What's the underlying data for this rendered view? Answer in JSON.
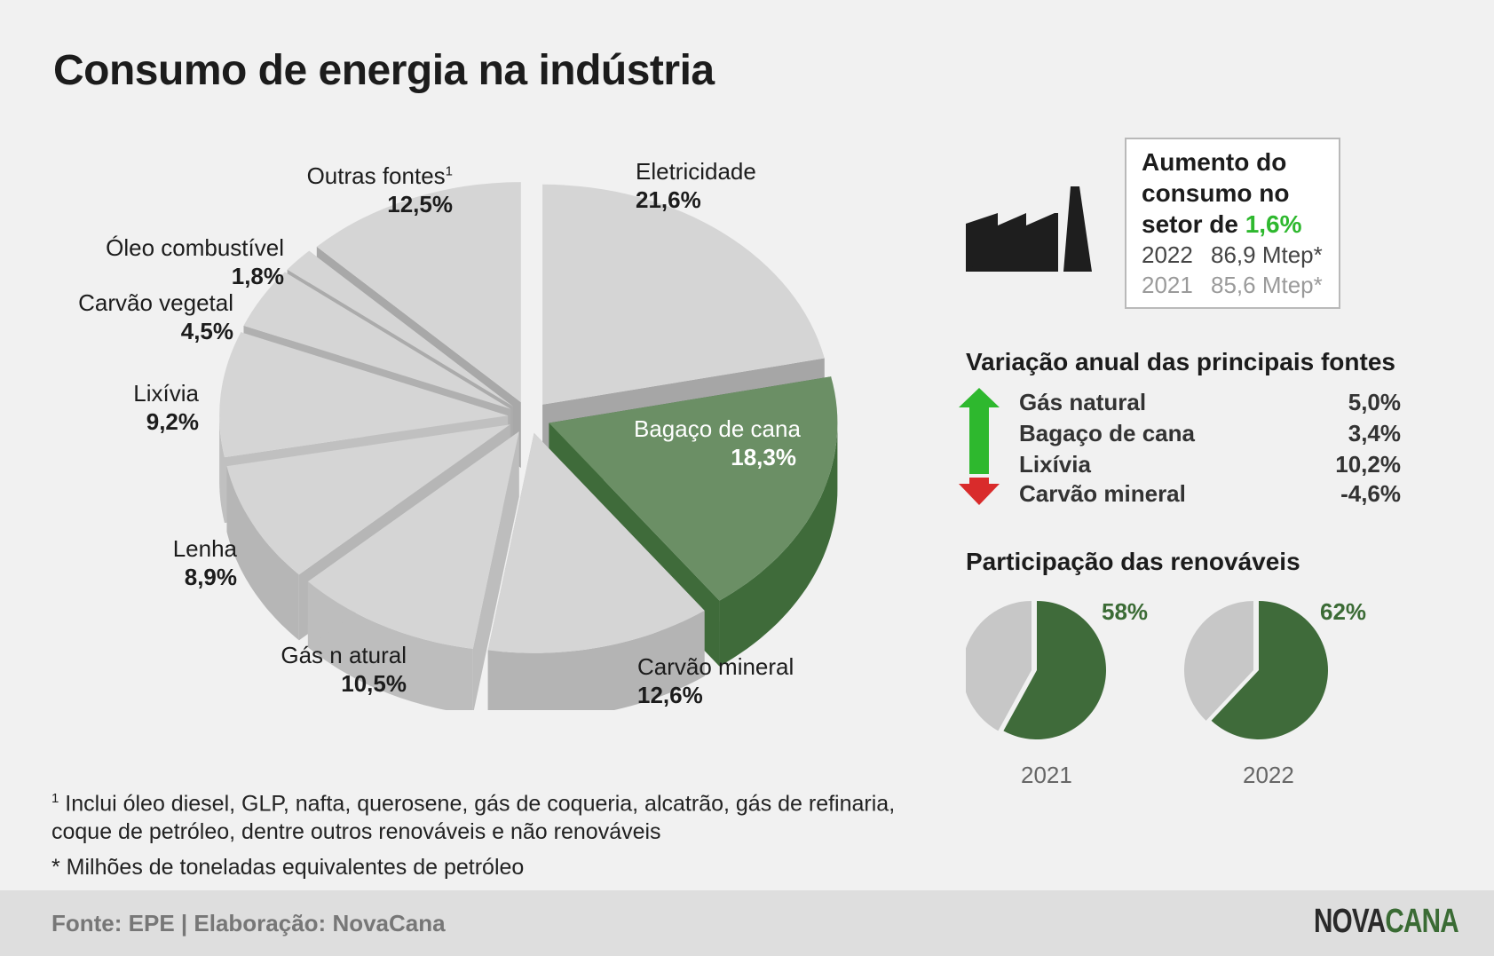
{
  "title": "Consumo de energia na indústria",
  "chart_data": {
    "type": "pie",
    "title": "Consumo de energia na indústria",
    "slices": [
      {
        "name": "Eletricidade",
        "value": 21.6,
        "label": "21,6%",
        "color": "#d5d5d5",
        "side": "#a6a6a6"
      },
      {
        "name": "Bagaço de cana",
        "value": 18.3,
        "label": "18,3%",
        "color": "#6b8f65",
        "side": "#3f6b3a"
      },
      {
        "name": "Carvão mineral",
        "value": 12.6,
        "label": "12,6%",
        "color": "#d5d5d5",
        "side": "#b4b4b4"
      },
      {
        "name": "Gás n atural",
        "value": 10.5,
        "label": "10,5%",
        "color": "#d5d5d5",
        "side": "#bdbdbd"
      },
      {
        "name": "Lenha",
        "value": 8.9,
        "label": "8,9%",
        "color": "#d5d5d5",
        "side": "#b6b6b6"
      },
      {
        "name": "Lixívia",
        "value": 9.2,
        "label": "9,2%",
        "color": "#d5d5d5",
        "side": "#c0c0c0"
      },
      {
        "name": "Carvão vegetal",
        "value": 4.5,
        "label": "4,5%",
        "color": "#d5d5d5",
        "side": "#b0b0b0"
      },
      {
        "name": "Óleo combustível",
        "value": 1.8,
        "label": "1,8%",
        "color": "#d5d5d5",
        "side": "#ababab"
      },
      {
        "name": "Outras fontes",
        "value": 12.5,
        "label": "12,5%",
        "color": "#d5d5d5",
        "side": "#a8a8a8"
      }
    ],
    "footnote_mark": "1"
  },
  "summary": {
    "headline_1": "Aumento do",
    "headline_2": "consumo no",
    "headline_3": "setor de ",
    "headline_pct": "1,6%",
    "accent_color": "#2eb82e",
    "rows": [
      {
        "year": "2022",
        "value": "86,9 Mtep*"
      },
      {
        "year": "2021",
        "value": "85,6 Mtep*"
      }
    ],
    "icon": "factory-icon"
  },
  "variation": {
    "title": "Variação anual das principais fontes",
    "up_color": "#2eb82e",
    "down_color": "#d92b2b",
    "rows": [
      {
        "name": "Gás natural",
        "value": "5,0%"
      },
      {
        "name": "Bagaço de cana",
        "value": "3,4%"
      },
      {
        "name": "Lixívia",
        "value": "10,2%"
      },
      {
        "name": "Carvão mineral",
        "value": "-4,6%"
      }
    ]
  },
  "renewables": {
    "title": "Participação das renováveis",
    "renewable_color": "#3f6b3a",
    "other_color": "#c7c7c7",
    "items": [
      {
        "year": "2021",
        "share": 58,
        "label": "58%"
      },
      {
        "year": "2022",
        "share": 62,
        "label": "62%"
      }
    ]
  },
  "notes": {
    "n1_mark": "1",
    "n1_line1": " Inclui óleo diesel, GLP, nafta, querosene, gás de coqueria, alcatrão, gás de refinaria,",
    "n1_line2": "coque de petróleo, dentre outros renováveis e não renováveis",
    "n2": "* Milhões de toneladas equivalentes de petróleo"
  },
  "footer": {
    "source": "Fonte: EPE | Elaboração: NovaCana",
    "logo_part1": "NOVA",
    "logo_part2": "CANA"
  }
}
